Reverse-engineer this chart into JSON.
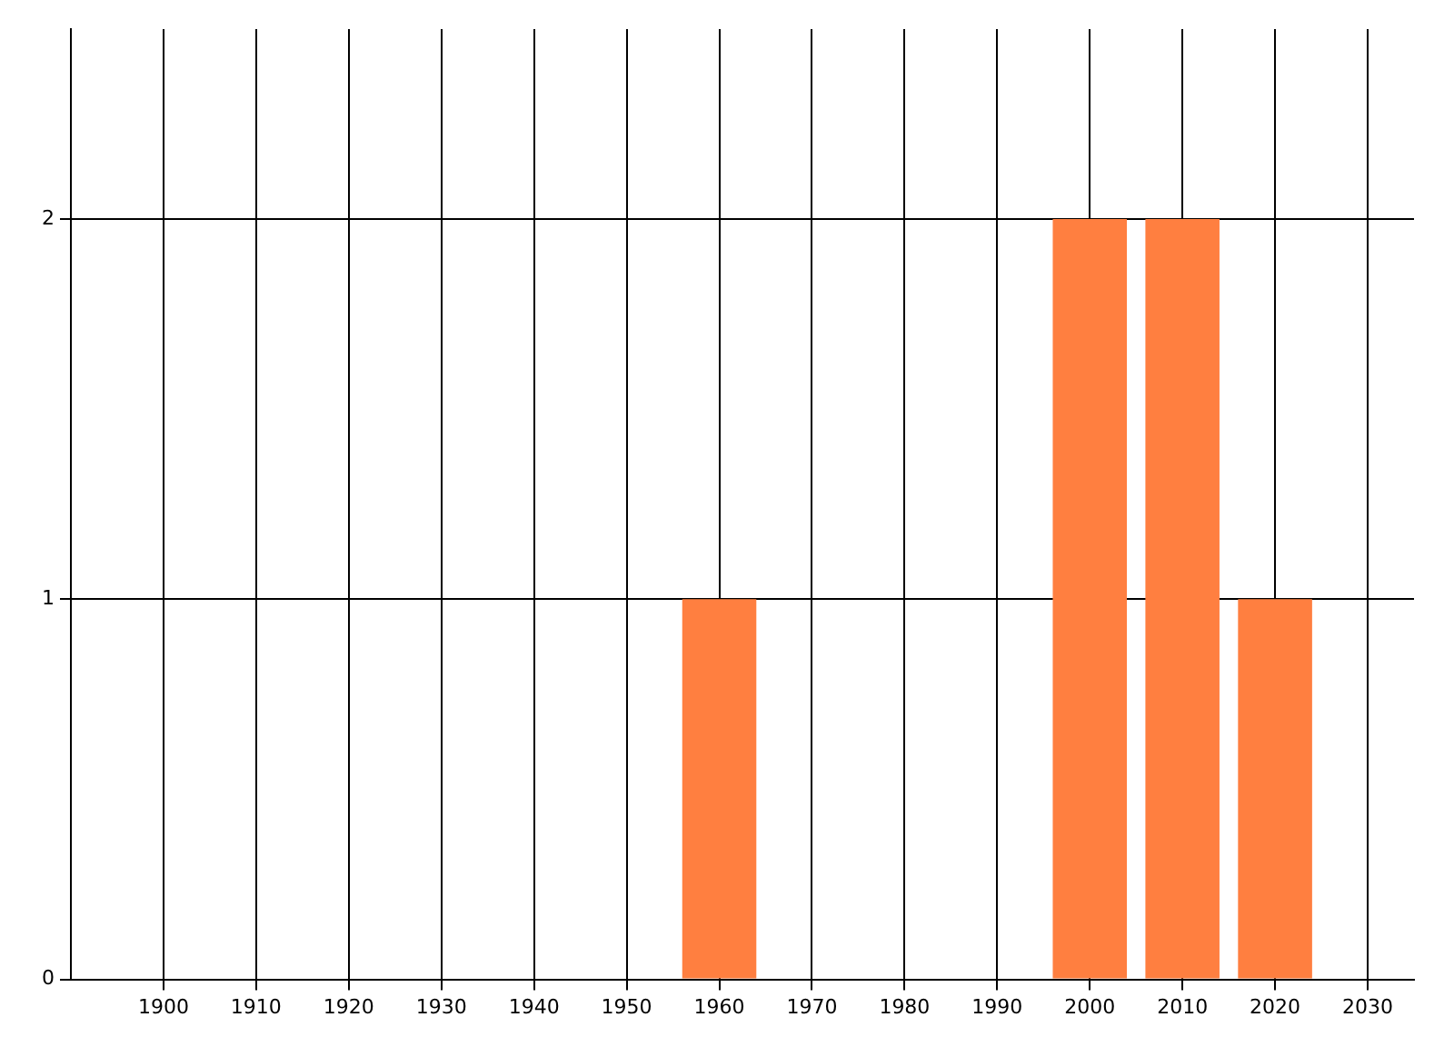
{
  "chart_data": {
    "type": "bar",
    "x": [
      1960,
      2000,
      2010,
      2020
    ],
    "values": [
      1,
      2,
      2,
      1
    ],
    "color": "#ff7f40",
    "xlim": [
      1890,
      2035
    ],
    "xticks": [
      1900,
      1910,
      1920,
      1930,
      1940,
      1950,
      1960,
      1970,
      1980,
      1990,
      2000,
      2010,
      2020,
      2030
    ],
    "ylim": [
      0,
      2.5
    ],
    "yticks": [
      0,
      1,
      2
    ],
    "grid": true,
    "legend": false
  }
}
